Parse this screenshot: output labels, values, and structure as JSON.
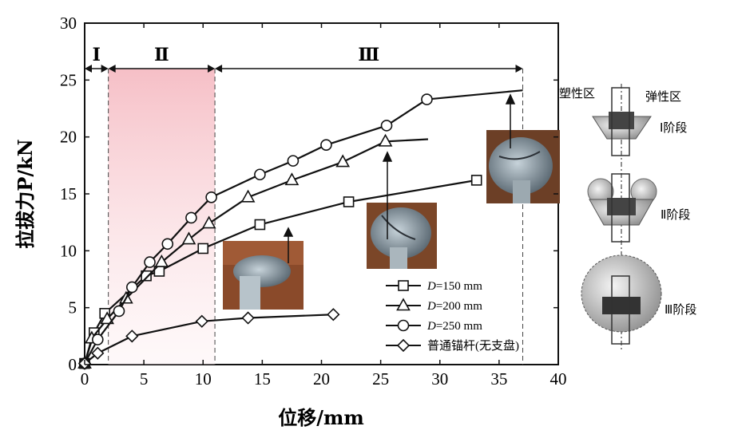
{
  "chart_data": {
    "type": "line",
    "xlabel": "位移/mm",
    "ylabel": "拉拔力P/kN",
    "xlim": [
      0,
      40
    ],
    "ylim": [
      0,
      30
    ],
    "xticks": [
      "0",
      "5",
      "10",
      "15",
      "20",
      "25",
      "30",
      "35",
      "40"
    ],
    "yticks": [
      "0",
      "5",
      "10",
      "15",
      "20",
      "25",
      "30"
    ],
    "stages": [
      {
        "label": "Ⅰ",
        "from": 0,
        "to": 2
      },
      {
        "label": "Ⅱ",
        "from": 2,
        "to": 11
      },
      {
        "label": "Ⅲ",
        "from": 11,
        "to": 37
      }
    ],
    "series": [
      {
        "name": "D=150 mm",
        "prefix": "D",
        "suffix": "=150 mm",
        "marker": "square",
        "x": [
          0,
          0.8,
          1.7,
          5.2,
          6.3,
          10.0,
          14.8,
          22.3,
          33.1
        ],
        "y": [
          0.1,
          2.8,
          4.5,
          7.8,
          8.2,
          10.2,
          12.3,
          14.3,
          16.2
        ],
        "curve_end": [
          33.1,
          16.2
        ]
      },
      {
        "name": "D=200 mm",
        "prefix": "D",
        "suffix": "=200 mm",
        "marker": "triangle",
        "x": [
          0,
          0.6,
          1.9,
          3.5,
          6.5,
          8.8,
          10.5,
          13.8,
          17.5,
          21.8,
          25.4
        ],
        "y": [
          0.1,
          2.3,
          4.0,
          5.8,
          9.0,
          11.0,
          12.4,
          14.7,
          16.2,
          17.8,
          19.6
        ],
        "curve_end": [
          29.0,
          19.8
        ]
      },
      {
        "name": "D=250 mm",
        "prefix": "D",
        "suffix": "=250 mm",
        "marker": "circle",
        "x": [
          0,
          1.1,
          2.9,
          4.0,
          5.5,
          7.0,
          9.0,
          10.7,
          14.8,
          17.6,
          20.4,
          25.5,
          28.9
        ],
        "y": [
          0.1,
          2.2,
          4.7,
          6.8,
          9.0,
          10.6,
          12.9,
          14.7,
          16.7,
          17.9,
          19.3,
          21.0,
          23.3
        ],
        "curve_end": [
          37.0,
          24.1
        ]
      },
      {
        "name": "普通锚杆(无支盘)",
        "prefix": "",
        "suffix": "普通锚杆(无支盘)",
        "marker": "diamond",
        "x": [
          0,
          1.1,
          4.0,
          9.9,
          13.8,
          21.0
        ],
        "y": [
          0.1,
          1.0,
          2.5,
          3.8,
          4.1,
          4.4
        ],
        "curve_end": [
          21.0,
          4.4
        ]
      }
    ],
    "grid": false,
    "legend_position": "bottom-right"
  },
  "side_labels": {
    "plastic_zone": "塑性区",
    "elastic_zone": "弹性区",
    "stage1": "Ⅰ阶段",
    "stage2": "Ⅱ阶段",
    "stage3": "Ⅲ阶段"
  },
  "colors": {
    "line": "#111111",
    "stage2_fill": "#f7c9cf",
    "photo_soil": "#8a4a2a",
    "photo_metal": "#8fa3b0"
  }
}
